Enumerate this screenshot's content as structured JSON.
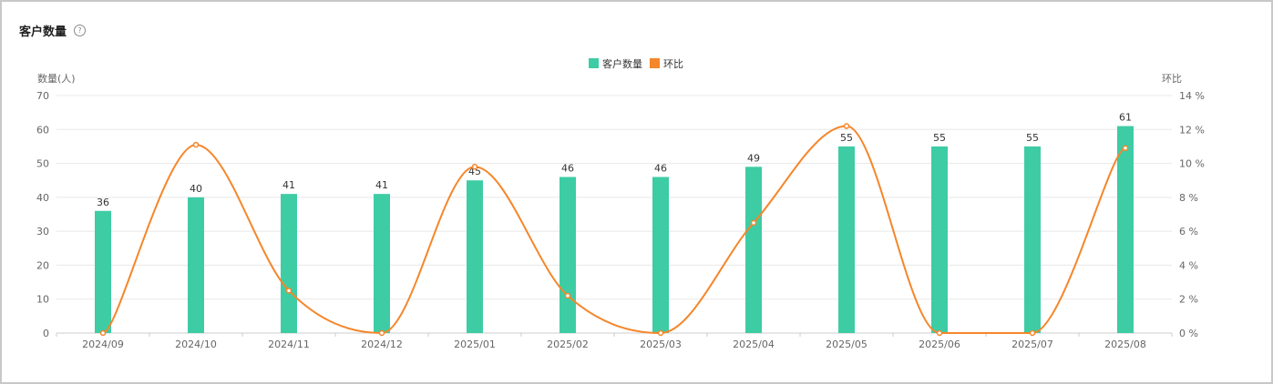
{
  "header": {
    "title": "客户数量",
    "help_icon": "question-circle-icon"
  },
  "colors": {
    "bar": "#3ecca5",
    "line": "#f5862a",
    "grid": "#e8e8e8",
    "axis": "#cccccc"
  },
  "chart_data": {
    "type": "bar",
    "categories": [
      "2024/09",
      "2024/10",
      "2024/11",
      "2024/12",
      "2025/01",
      "2025/02",
      "2025/03",
      "2025/04",
      "2025/05",
      "2025/06",
      "2025/07",
      "2025/08"
    ],
    "series": [
      {
        "name": "客户数量",
        "type": "bar",
        "axis": "left",
        "values": [
          36,
          40,
          41,
          41,
          45,
          46,
          46,
          49,
          55,
          55,
          55,
          61
        ]
      },
      {
        "name": "环比",
        "type": "line",
        "smooth": true,
        "axis": "right",
        "values": [
          0,
          11.1,
          2.5,
          0,
          9.8,
          2.2,
          0,
          6.5,
          12.2,
          0,
          0,
          10.9
        ]
      }
    ],
    "y_left": {
      "label": "数量(人)",
      "min": 0,
      "max": 70,
      "ticks": [
        "0",
        "10",
        "20",
        "30",
        "40",
        "50",
        "60",
        "70"
      ]
    },
    "y_right": {
      "label": "环比",
      "min": 0,
      "max": 14,
      "ticks": [
        "0 %",
        "2 %",
        "4 %",
        "6 %",
        "8 %",
        "10 %",
        "12 %",
        "14 %"
      ]
    },
    "legend": {
      "position": "top-center",
      "items": [
        "客户数量",
        "环比"
      ]
    },
    "bar_labels": [
      "36",
      "40",
      "41",
      "41",
      "45",
      "46",
      "46",
      "49",
      "55",
      "55",
      "55",
      "61"
    ],
    "grid": true
  }
}
